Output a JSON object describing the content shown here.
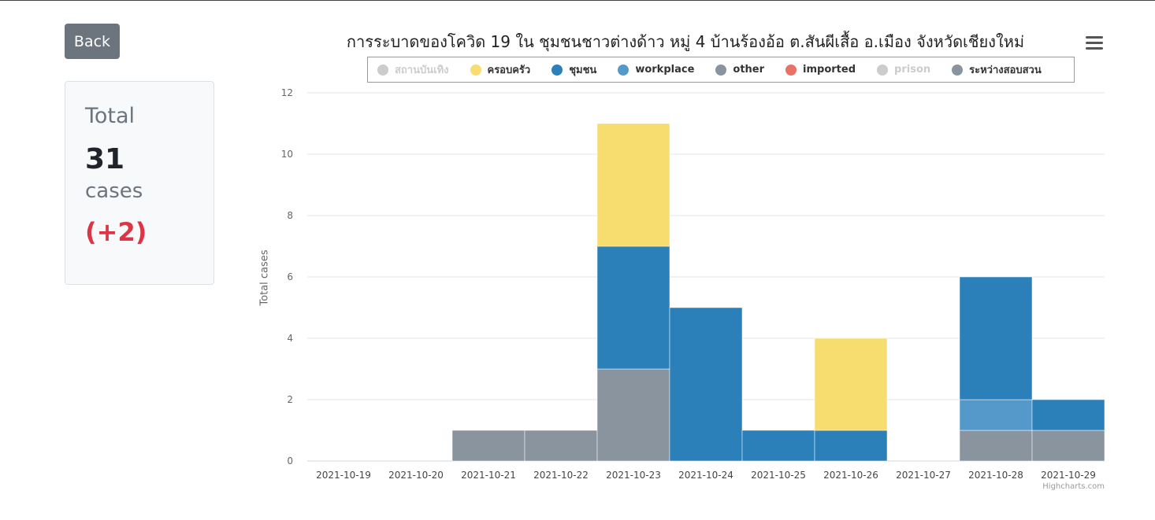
{
  "back_label": "Back",
  "summary": {
    "label": "Total",
    "count": "31",
    "unit": "cases",
    "delta": "(+2)"
  },
  "credits": "Highcharts.com",
  "chart_data": {
    "type": "bar",
    "stacked": true,
    "title": "การระบาดของโควิด 19 ใน ชุมชนชาวต่างด้าว หมู่ 4 บ้านร้องอ้อ ต.สันผีเสื้อ อ.เมือง จังหวัดเชียงใหม่",
    "ylabel": "Total cases",
    "xlabel": "",
    "ylim": [
      0,
      12
    ],
    "yticks": [
      0,
      2,
      4,
      6,
      8,
      10,
      12
    ],
    "grid": true,
    "legend_position": "top",
    "categories": [
      "2021-10-19",
      "2021-10-20",
      "2021-10-21",
      "2021-10-22",
      "2021-10-23",
      "2021-10-24",
      "2021-10-25",
      "2021-10-26",
      "2021-10-27",
      "2021-10-28",
      "2021-10-29"
    ],
    "series": [
      {
        "name": "สถานบันเทิง",
        "color": "#cccccc",
        "visible": false,
        "values": [
          0,
          0,
          0,
          0,
          0,
          0,
          0,
          0,
          0,
          0,
          0
        ]
      },
      {
        "name": "ครอบครัว",
        "color": "#f7dc70",
        "visible": true,
        "values": [
          0,
          0,
          0,
          0,
          4,
          0,
          0,
          3,
          0,
          0,
          0
        ]
      },
      {
        "name": "ชุมชน",
        "color": "#2c80b9",
        "visible": true,
        "values": [
          0,
          0,
          0,
          0,
          4,
          5,
          1,
          1,
          0,
          4,
          1
        ]
      },
      {
        "name": "workplace",
        "color": "#5499c9",
        "visible": true,
        "values": [
          0,
          0,
          0,
          0,
          0,
          0,
          0,
          0,
          0,
          1,
          0
        ]
      },
      {
        "name": "other",
        "color": "#8a949f",
        "visible": true,
        "values": [
          0,
          0,
          0,
          0,
          0,
          0,
          0,
          0,
          0,
          0,
          0
        ]
      },
      {
        "name": "imported",
        "color": "#e97168",
        "visible": true,
        "values": [
          0,
          0,
          0,
          0,
          0,
          0,
          0,
          0,
          0,
          0,
          0
        ]
      },
      {
        "name": "prison",
        "color": "#cccccc",
        "visible": false,
        "values": [
          0,
          0,
          0,
          0,
          0,
          0,
          0,
          0,
          0,
          0,
          0
        ]
      },
      {
        "name": "ระหว่างสอบสวน",
        "color": "#8a949f",
        "visible": true,
        "values": [
          0,
          0,
          1,
          1,
          3,
          0,
          0,
          0,
          0,
          1,
          1
        ]
      }
    ]
  }
}
